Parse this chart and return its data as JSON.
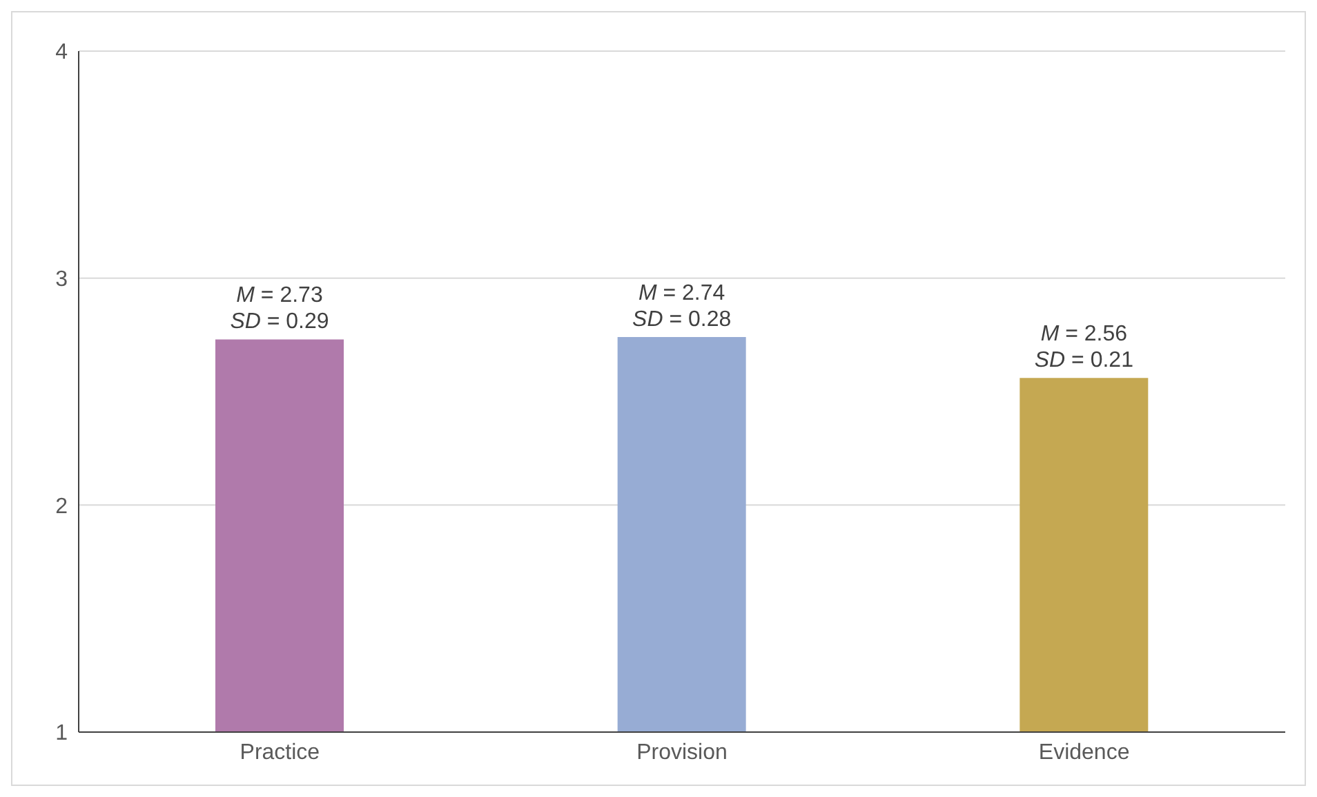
{
  "chart_data": {
    "type": "bar",
    "categories": [
      "Practice",
      "Provision",
      "Evidence"
    ],
    "values": [
      2.73,
      2.74,
      2.56
    ],
    "colors": [
      "#b07aab",
      "#97acd4",
      "#c5a852"
    ],
    "value_labels": [
      "M = 2.73\nSD = 0.29",
      "M = 2.74\nSD = 0.28",
      "M = 2.56\nSD = 0.21"
    ],
    "ylim": [
      1,
      4
    ],
    "yticks": [
      1,
      2,
      3,
      4
    ],
    "grid": "y"
  }
}
